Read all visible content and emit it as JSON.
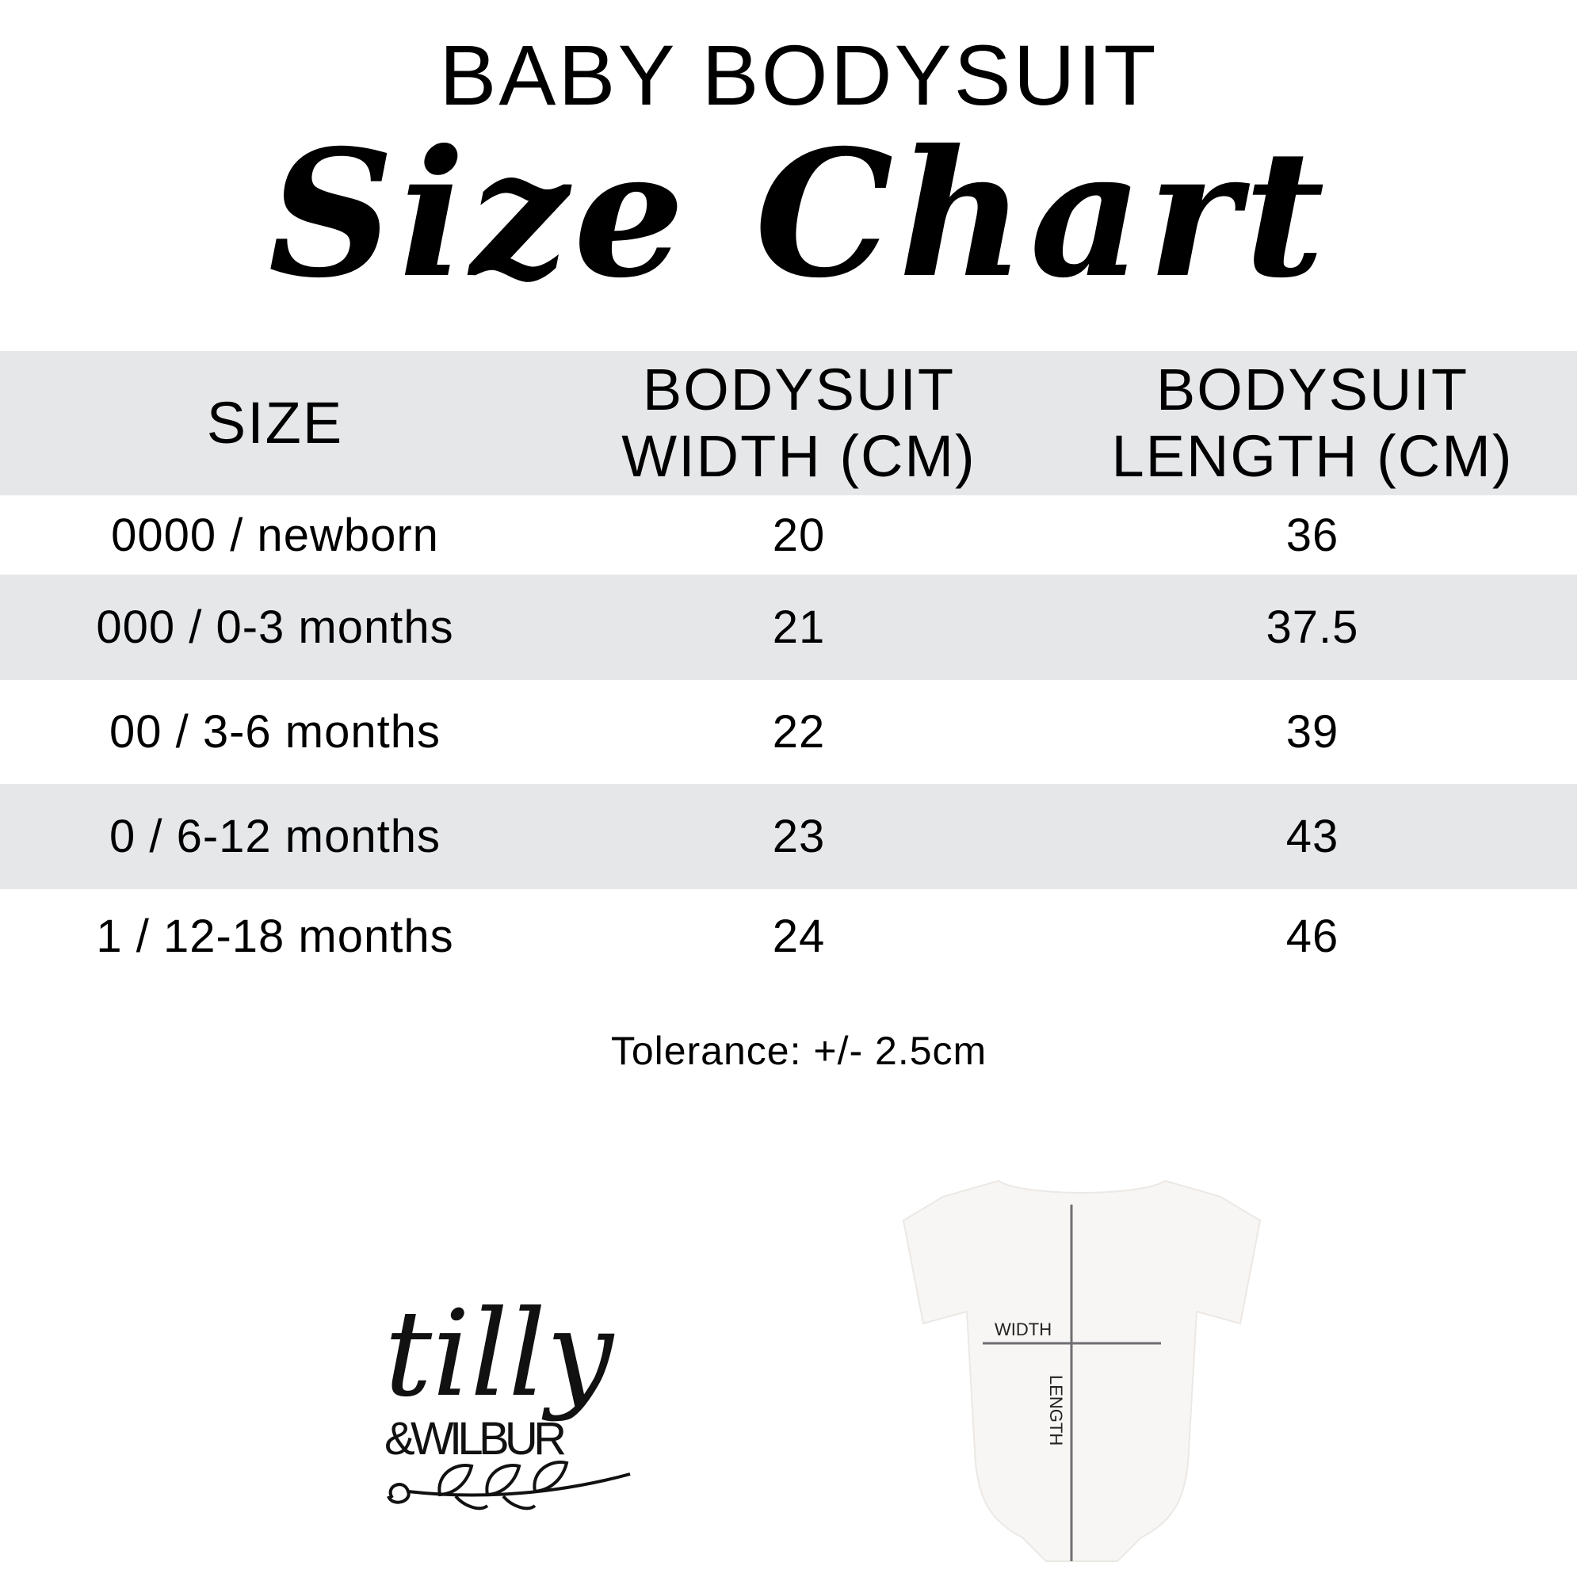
{
  "header": {
    "title": "BABY BODYSUIT",
    "subtitle": "Size Chart"
  },
  "table": {
    "columns": [
      "SIZE",
      [
        "BODYSUIT",
        "WIDTH (CM)"
      ],
      [
        "BODYSUIT",
        "LENGTH (CM)"
      ]
    ],
    "rows": [
      {
        "size": "0000 / newborn",
        "width": "20",
        "length": "36"
      },
      {
        "size": "000 / 0-3 months",
        "width": "21",
        "length": "37.5"
      },
      {
        "size": "00 / 3-6 months",
        "width": "22",
        "length": "39"
      },
      {
        "size": "0 / 6-12 months",
        "width": "23",
        "length": "43"
      },
      {
        "size": "1 / 12-18 months",
        "width": "24",
        "length": "46"
      }
    ],
    "stripe_color": "#e6e7e9"
  },
  "tolerance": "Tolerance: +/- 2.5cm",
  "logo": {
    "line1": "tilly",
    "line2": "&WILBUR"
  },
  "diagram": {
    "width_label": "WIDTH",
    "length_label": "LENGTH",
    "line_color": "#6d6e71"
  }
}
